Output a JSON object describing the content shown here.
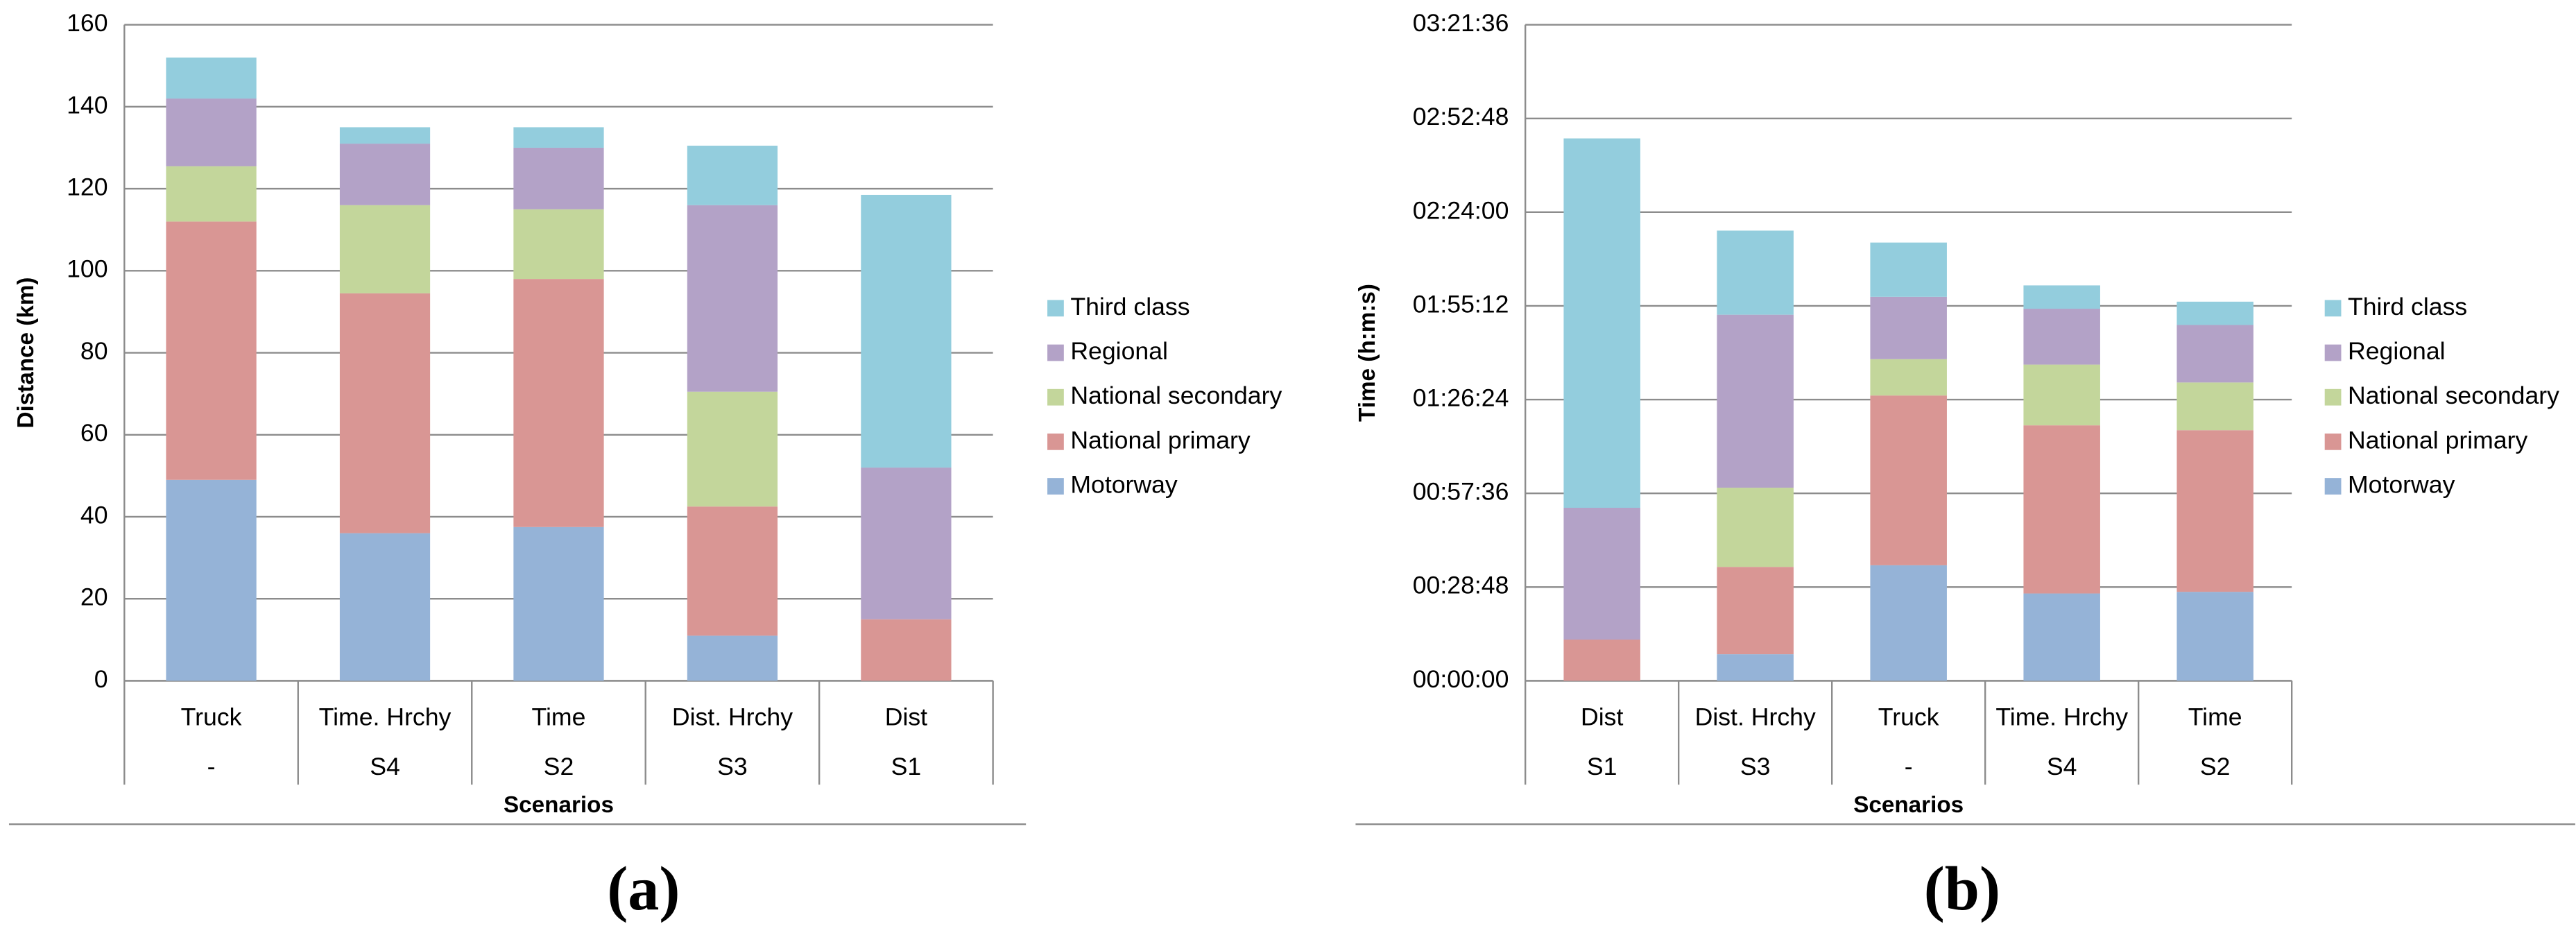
{
  "chart_data": [
    {
      "type": "stacked-bar",
      "label": "(a)",
      "y_label": "Distance (km)",
      "x_label": "Scenarios",
      "categories": [
        "Truck",
        "Time. Hrchy",
        "Time",
        "Dist. Hrchy",
        "Dist"
      ],
      "groups": [
        "-",
        "S4",
        "S2",
        "S3",
        "S1"
      ],
      "ylim": [
        0,
        160
      ],
      "yticks": [
        0,
        20,
        40,
        60,
        80,
        100,
        120,
        140,
        160
      ],
      "grid": true,
      "series": [
        {
          "name": "Motorway",
          "color": "#95b3d7",
          "values": [
            49,
            36,
            37.5,
            11,
            0
          ]
        },
        {
          "name": "National primary",
          "color": "#d99694",
          "values": [
            63,
            58.5,
            60.5,
            31.5,
            15
          ]
        },
        {
          "name": "National secondary",
          "color": "#c3d69b",
          "values": [
            13.5,
            21.5,
            17,
            28,
            0
          ]
        },
        {
          "name": "Regional",
          "color": "#b3a2c7",
          "values": [
            16.5,
            15,
            15,
            45.5,
            37
          ]
        },
        {
          "name": "Third class",
          "color": "#93cddd",
          "values": [
            10,
            4,
            5,
            14.5,
            66.5
          ]
        }
      ]
    },
    {
      "type": "stacked-bar",
      "label": "(b)",
      "y_label": "Time (h:m:s)",
      "x_label": "Scenarios",
      "categories": [
        "Dist",
        "Dist. Hrchy",
        "Truck",
        "Time. Hrchy",
        "Time"
      ],
      "groups": [
        "S1",
        "S3",
        "-",
        "S4",
        "S2"
      ],
      "ylim": [
        0,
        12096
      ],
      "yticks": [
        {
          "value": 0,
          "label": "00:00:00"
        },
        {
          "value": 1728,
          "label": "00:28:48"
        },
        {
          "value": 3456,
          "label": "00:57:36"
        },
        {
          "value": 5184,
          "label": "01:26:24"
        },
        {
          "value": 6912,
          "label": "01:55:12"
        },
        {
          "value": 8640,
          "label": "02:24:00"
        },
        {
          "value": 10368,
          "label": "02:52:48"
        },
        {
          "value": 12096,
          "label": "03:21:36"
        }
      ],
      "grid": true,
      "series": [
        {
          "name": "Motorway",
          "color": "#95b3d7",
          "values": [
            0,
            490,
            2130,
            1610,
            1640
          ]
        },
        {
          "name": "National primary",
          "color": "#d99694",
          "values": [
            760,
            1610,
            3130,
            3100,
            2980
          ]
        },
        {
          "name": "National secondary",
          "color": "#c3d69b",
          "values": [
            0,
            1460,
            670,
            1120,
            880
          ]
        },
        {
          "name": "Regional",
          "color": "#b3a2c7",
          "values": [
            2430,
            3190,
            1150,
            1030,
            1060
          ]
        },
        {
          "name": "Third class",
          "color": "#93cddd",
          "values": [
            6810,
            1550,
            1000,
            430,
            430
          ]
        }
      ]
    }
  ]
}
